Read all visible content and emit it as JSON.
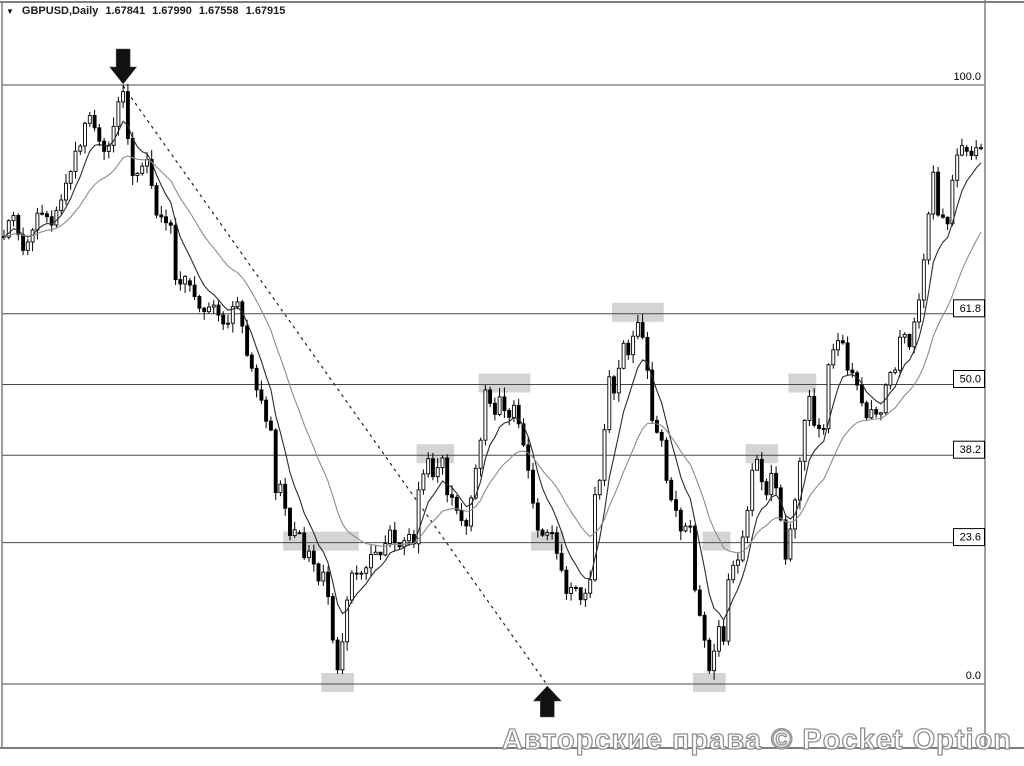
{
  "header": {
    "dropdown_icon": "▼",
    "symbol_timeframe": "GBPUSD,Daily",
    "open": "1.67841",
    "high": "1.67990",
    "low": "1.67558",
    "close": "1.67915"
  },
  "watermark": {
    "text": "Авторские права © Pocket Option"
  },
  "colors": {
    "background": "#ffffff",
    "frame_border": "#7f7f7f",
    "fib_line": "#4a4a4a",
    "fib_label_text": "#000000",
    "fib_label_box_fill": "#ffffff",
    "fib_label_box_border": "#000000",
    "candle_stroke": "#000000",
    "candle_up_fill": "#ffffff",
    "candle_down_fill": "#000000",
    "ma_fast": "#2b2b2b",
    "ma_slow": "#8c8c8c",
    "zone_fill": "#c9c9c9",
    "trendline": "#222222",
    "arrow_fill": "#111111",
    "watermark_outline": "#8f8f8f"
  },
  "chart_data": {
    "type": "candlestick",
    "symbol": "GBPUSD",
    "timeframe": "Daily",
    "title": "GBPUSD,Daily  1.67841 1.67990 1.67558 1.67915",
    "last_quote": {
      "open": 1.67841,
      "high": 1.6799,
      "low": 1.67558,
      "close": 1.67915
    },
    "y_axis": "fibonacci_retracement_percent",
    "grid": false,
    "legend": false,
    "fib_levels": [
      {
        "label": "100.0",
        "level": 100,
        "boxed": false
      },
      {
        "label": "61.8",
        "level": 61.8,
        "boxed": true
      },
      {
        "label": "50.0",
        "level": 50,
        "boxed": true
      },
      {
        "label": "38.2",
        "level": 38.2,
        "boxed": true
      },
      {
        "label": "23.6",
        "level": 23.6,
        "boxed": true
      },
      {
        "label": "0.0",
        "level": 0,
        "boxed": false
      }
    ],
    "candle_count": 206,
    "jitter_seed": 1234,
    "price_path_pivots": [
      [
        0,
        74.1
      ],
      [
        2,
        78.8
      ],
      [
        4,
        71.6
      ],
      [
        8,
        80
      ],
      [
        10,
        75.5
      ],
      [
        12,
        80.8
      ],
      [
        18,
        95.5
      ],
      [
        21,
        87.5
      ],
      [
        25,
        100
      ],
      [
        27,
        83.3
      ],
      [
        30,
        88.8
      ],
      [
        32,
        78.3
      ],
      [
        35,
        76.6
      ],
      [
        36,
        66.6
      ],
      [
        39,
        67.8
      ],
      [
        42,
        60.8
      ],
      [
        44,
        64.1
      ],
      [
        46,
        59.1
      ],
      [
        49,
        64.6
      ],
      [
        51,
        54.9
      ],
      [
        53,
        49.1
      ],
      [
        56,
        42.4
      ],
      [
        57,
        30.7
      ],
      [
        58,
        34
      ],
      [
        60,
        24
      ],
      [
        62,
        25.7
      ],
      [
        63,
        20.7
      ],
      [
        64,
        23.2
      ],
      [
        66,
        16.5
      ],
      [
        67,
        19.9
      ],
      [
        70,
        1.7
      ],
      [
        72,
        14
      ],
      [
        73,
        19
      ],
      [
        75,
        17.4
      ],
      [
        78,
        23.2
      ],
      [
        79,
        20.7
      ],
      [
        81,
        26.5
      ],
      [
        83,
        22.4
      ],
      [
        85,
        26
      ],
      [
        86,
        22.7
      ],
      [
        87,
        32.4
      ],
      [
        89,
        38.7
      ],
      [
        90,
        34
      ],
      [
        92,
        38.2
      ],
      [
        93,
        31.6
      ],
      [
        95,
        29
      ],
      [
        97,
        24.9
      ],
      [
        100,
        40.7
      ],
      [
        101,
        49.9
      ],
      [
        103,
        44
      ],
      [
        104,
        49.4
      ],
      [
        106,
        43.2
      ],
      [
        107,
        47.4
      ],
      [
        109,
        39.9
      ],
      [
        110,
        35.7
      ],
      [
        112,
        25.7
      ],
      [
        114,
        24
      ],
      [
        115,
        26.5
      ],
      [
        117,
        19
      ],
      [
        118,
        14
      ],
      [
        120,
        16.5
      ],
      [
        121,
        13.2
      ],
      [
        123,
        17.4
      ],
      [
        124,
        31.6
      ],
      [
        125,
        34
      ],
      [
        127,
        52.4
      ],
      [
        128,
        47.4
      ],
      [
        130,
        57.4
      ],
      [
        131,
        54.1
      ],
      [
        133,
        61.6
      ],
      [
        135,
        52.4
      ],
      [
        136,
        44
      ],
      [
        138,
        40.7
      ],
      [
        139,
        34
      ],
      [
        141,
        29
      ],
      [
        142,
        24
      ],
      [
        144,
        27.4
      ],
      [
        145,
        15.7
      ],
      [
        147,
        7.3
      ],
      [
        148,
        1.7
      ],
      [
        150,
        10.7
      ],
      [
        151,
        6.5
      ],
      [
        152,
        17.4
      ],
      [
        154,
        20.7
      ],
      [
        156,
        29
      ],
      [
        157,
        35.7
      ],
      [
        158,
        38.2
      ],
      [
        160,
        30.7
      ],
      [
        161,
        36.6
      ],
      [
        163,
        27.4
      ],
      [
        164,
        19.9
      ],
      [
        166,
        30.7
      ],
      [
        168,
        44
      ],
      [
        169,
        49.1
      ],
      [
        170,
        43.2
      ],
      [
        172,
        41.6
      ],
      [
        173,
        53.3
      ],
      [
        174,
        55.8
      ],
      [
        176,
        58.3
      ],
      [
        177,
        52.4
      ],
      [
        179,
        49.9
      ],
      [
        181,
        44
      ],
      [
        182,
        47.4
      ],
      [
        184,
        44
      ],
      [
        185,
        49.9
      ],
      [
        187,
        52.4
      ],
      [
        188,
        59.1
      ],
      [
        190,
        55.8
      ],
      [
        192,
        64.1
      ],
      [
        193,
        70.8
      ],
      [
        195,
        86.6
      ],
      [
        196,
        78.3
      ],
      [
        198,
        75.8
      ],
      [
        199,
        84.1
      ],
      [
        200,
        88.3
      ],
      [
        202,
        90
      ],
      [
        203,
        87.5
      ],
      [
        204,
        90.8
      ],
      [
        205,
        89.1
      ]
    ],
    "moving_averages": [
      {
        "name": "fast",
        "type": "ema",
        "period": 7
      },
      {
        "name": "slow",
        "type": "ema",
        "period": 21
      }
    ],
    "trendline": {
      "style": "dashed",
      "from_index": 25,
      "from_level": 100,
      "to_index": 114,
      "to_level": 0
    },
    "arrows": [
      {
        "direction": "down",
        "index": 25,
        "level": 100
      },
      {
        "direction": "up",
        "index": 114,
        "level": 0
      }
    ],
    "highlight_zones": [
      {
        "from_index": 59,
        "to_index": 74,
        "level": 23.6
      },
      {
        "from_index": 67,
        "to_index": 73,
        "level": 0
      },
      {
        "from_index": 87,
        "to_index": 94,
        "level": 38.2
      },
      {
        "from_index": 100,
        "to_index": 110,
        "level": 50
      },
      {
        "from_index": 111,
        "to_index": 117,
        "level": 23.6
      },
      {
        "from_index": 128,
        "to_index": 138,
        "level": 61.8
      },
      {
        "from_index": 145,
        "to_index": 151,
        "level": 0
      },
      {
        "from_index": 147,
        "to_index": 152,
        "level": 23.6
      },
      {
        "from_index": 156,
        "to_index": 162,
        "level": 38.2
      },
      {
        "from_index": 165,
        "to_index": 170,
        "level": 50
      }
    ]
  }
}
